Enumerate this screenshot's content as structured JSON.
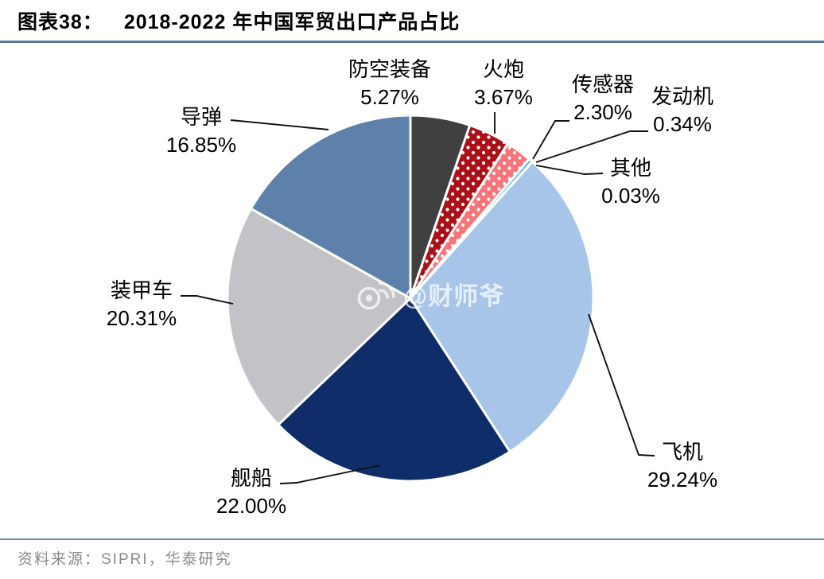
{
  "header": {
    "figure_label": "图表38：",
    "title": "2018-2022 年中国军贸出口产品占比"
  },
  "footer": {
    "source": "资料来源：SIPRI，华泰研究"
  },
  "watermark": {
    "text": "@财师爷",
    "icon": "weibo-icon"
  },
  "chart_data": {
    "type": "pie",
    "title": "2018-2022 年中国军贸出口产品占比",
    "start_angle_deg": 0,
    "direction": "clockwise",
    "legend": "none",
    "accent_rule_color": "#54779c",
    "slice_border_color": "#ffffff",
    "slices": [
      {
        "key": "air_defense",
        "label": "防空装备",
        "value": 5.27,
        "pct_label": "5.27%",
        "color": "#404040",
        "pattern": "none"
      },
      {
        "key": "artillery",
        "label": "火炮",
        "value": 3.67,
        "pct_label": "3.67%",
        "color": "#ac0f16",
        "pattern": "white-dots"
      },
      {
        "key": "sensors",
        "label": "传感器",
        "value": 2.3,
        "pct_label": "2.30%",
        "color": "#f87478",
        "pattern": "white-dots"
      },
      {
        "key": "engines",
        "label": "发动机",
        "value": 0.34,
        "pct_label": "0.34%",
        "color": "#2eb3e0",
        "pattern": "none"
      },
      {
        "key": "others",
        "label": "其他",
        "value": 0.03,
        "pct_label": "0.03%",
        "color": "#ffffff",
        "pattern": "none"
      },
      {
        "key": "aircraft",
        "label": "飞机",
        "value": 29.24,
        "pct_label": "29.24%",
        "color": "#a6c5e8",
        "pattern": "none"
      },
      {
        "key": "ships",
        "label": "舰船",
        "value": 22.0,
        "pct_label": "22.00%",
        "color": "#0e2d69",
        "pattern": "none"
      },
      {
        "key": "armored_vehicles",
        "label": "装甲车",
        "value": 20.31,
        "pct_label": "20.31%",
        "color": "#c3c3c7",
        "pattern": "none"
      },
      {
        "key": "missiles",
        "label": "导弹",
        "value": 16.85,
        "pct_label": "16.85%",
        "color": "#5e81ab",
        "pattern": "none"
      }
    ]
  }
}
